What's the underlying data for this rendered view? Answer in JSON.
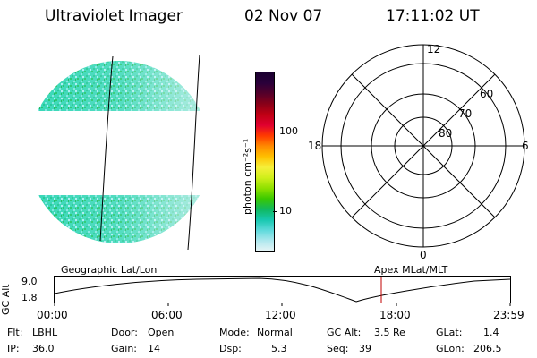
{
  "header": {
    "title": "Ultraviolet Imager",
    "date": "02 Nov 07",
    "time": "17:11:02 UT"
  },
  "colorbar": {
    "unit_label": "photon cm⁻²s⁻¹",
    "ticks": [
      "100",
      "10"
    ],
    "colors": [
      "#1a0030",
      "#2a003a",
      "#55002a",
      "#8a0018",
      "#c00014",
      "#e00030",
      "#ff3a00",
      "#ff8a00",
      "#ffc000",
      "#f6ef3a",
      "#cfef1a",
      "#8fe000",
      "#3ac800",
      "#10b860",
      "#18c8b0",
      "#60dadc",
      "#b0e8ee",
      "#e8f4f6"
    ]
  },
  "polar": {
    "top_label": "12",
    "bottom_label": "0",
    "left_label": "18",
    "right_label": "6",
    "ring_labels": [
      "60",
      "70",
      "80"
    ]
  },
  "timeline": {
    "left_label": "Geographic Lat/Lon",
    "right_label": "Apex MLat/MLT",
    "axis_title": "GC Alt",
    "y_ticks": [
      "9.0",
      "1.8"
    ],
    "x_ticks": [
      "00:00",
      "06:00",
      "12:00",
      "18:00",
      "23:59"
    ],
    "marker_color": "#c00000"
  },
  "info": {
    "flt_label": "Flt:",
    "flt_value": "LBHL",
    "ip_label": "IP:",
    "ip_value": "36.0",
    "door_label": "Door:",
    "door_value": "Open",
    "gain_label": "Gain:",
    "gain_value": "14",
    "mode_label": "Mode:",
    "mode_value": "Normal",
    "dsp_label": "Dsp:",
    "dsp_value": "5.3",
    "gcalt_label": "GC Alt:",
    "gcalt_value": "3.5 Re",
    "seq_label": "Seq:",
    "seq_value": "39",
    "glat_label": "GLat:",
    "glat_value": "1.4",
    "glon_label": "GLon:",
    "glon_value": "206.5"
  }
}
